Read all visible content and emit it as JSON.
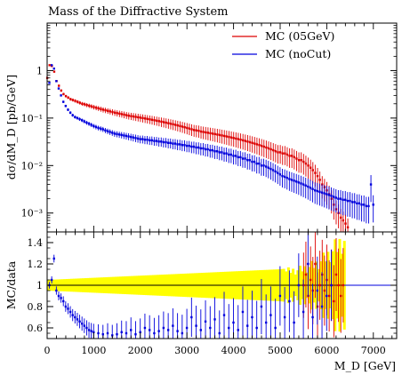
{
  "chart_data": [
    {
      "type": "scatter",
      "title": "Mass of the Diffractive System",
      "ylabel": "dσ/dM_D [pb/GeV]",
      "xlabel": "",
      "xlim": [
        0,
        7500
      ],
      "ylim": [
        0.0004,
        10
      ],
      "yscale": "log",
      "grid": false,
      "legend_position": "top-right",
      "ytick_labels": [
        "10⁻³",
        "10⁻²",
        "10⁻¹",
        "1"
      ],
      "x": [
        25,
        75,
        125,
        175,
        225,
        275,
        325,
        375,
        425,
        475,
        525,
        575,
        625,
        675,
        725,
        775,
        825,
        875,
        925,
        975,
        1025,
        1075,
        1125,
        1175,
        1225,
        1275,
        1325,
        1375,
        1425,
        1475,
        1525,
        1575,
        1625,
        1675,
        1725,
        1775,
        1825,
        1875,
        1925,
        1975,
        2025,
        2075,
        2125,
        2175,
        2225,
        2275,
        2325,
        2375,
        2425,
        2475,
        2525,
        2575,
        2625,
        2675,
        2725,
        2775,
        2825,
        2875,
        2925,
        2975,
        3025,
        3075,
        3125,
        3175,
        3225,
        3275,
        3325,
        3375,
        3425,
        3475,
        3525,
        3575,
        3625,
        3675,
        3725,
        3775,
        3825,
        3875,
        3925,
        3975,
        4025,
        4075,
        4125,
        4175,
        4225,
        4275,
        4325,
        4375,
        4425,
        4475,
        4525,
        4575,
        4625,
        4675,
        4725,
        4775,
        4825,
        4875,
        4925,
        4975,
        5025,
        5075,
        5125,
        5175,
        5225,
        5275,
        5325,
        5375,
        5425,
        5475,
        5525,
        5575,
        5625,
        5675,
        5725,
        5775,
        5825,
        5875,
        5925,
        5975,
        6025,
        6075,
        6125,
        6175,
        6225,
        6275,
        6325,
        6375,
        6425,
        6475,
        6525,
        6575,
        6625,
        6675,
        6725,
        6775,
        6825,
        6875,
        6925,
        6975
      ],
      "series": [
        {
          "name": "MC (05GeV)",
          "color": "#dd0000",
          "values": [
            0.7,
            1.3,
            1.25,
            0.95,
            0.6,
            0.48,
            0.38,
            0.32,
            0.29,
            0.27,
            0.25,
            0.24,
            0.23,
            0.22,
            0.21,
            0.2,
            0.195,
            0.188,
            0.182,
            0.176,
            0.17,
            0.165,
            0.16,
            0.155,
            0.15,
            0.146,
            0.142,
            0.138,
            0.134,
            0.13,
            0.127,
            0.124,
            0.121,
            0.118,
            0.115,
            0.112,
            0.11,
            0.108,
            0.106,
            0.104,
            0.102,
            0.1,
            0.098,
            0.096,
            0.094,
            0.092,
            0.09,
            0.088,
            0.086,
            0.084,
            0.082,
            0.08,
            0.078,
            0.076,
            0.074,
            0.072,
            0.07,
            0.068,
            0.066,
            0.064,
            0.062,
            0.06,
            0.058,
            0.056,
            0.055,
            0.054,
            0.052,
            0.051,
            0.05,
            0.049,
            0.048,
            0.047,
            0.046,
            0.045,
            0.044,
            0.043,
            0.042,
            0.041,
            0.04,
            0.039,
            0.038,
            0.037,
            0.036,
            0.035,
            0.034,
            0.033,
            0.032,
            0.031,
            0.03,
            0.029,
            0.028,
            0.027,
            0.026,
            0.025,
            0.024,
            0.023,
            0.022,
            0.021,
            0.02,
            0.019,
            0.019,
            0.018,
            0.018,
            0.017,
            0.016,
            0.016,
            0.015,
            0.014,
            0.013,
            0.013,
            0.012,
            0.011,
            0.01,
            0.009,
            0.008,
            0.007,
            0.006,
            0.005,
            0.004,
            0.0035,
            0.003,
            0.0025,
            0.002,
            0.0015,
            0.0012,
            0.001,
            0.0008,
            0.0007,
            0.0006,
            0.0005,
            null,
            null,
            null,
            null,
            null,
            null,
            null,
            null,
            null,
            null
          ]
        },
        {
          "name": "MC (noCut)",
          "color": "#0000dd",
          "values": [
            0.55,
            1.3,
            1.1,
            0.6,
            0.42,
            0.3,
            0.22,
            0.18,
            0.15,
            0.13,
            0.115,
            0.105,
            0.1,
            0.095,
            0.09,
            0.085,
            0.08,
            0.076,
            0.072,
            0.068,
            0.065,
            0.062,
            0.06,
            0.058,
            0.055,
            0.053,
            0.051,
            0.049,
            0.047,
            0.046,
            0.045,
            0.044,
            0.043,
            0.042,
            0.041,
            0.04,
            0.039,
            0.038,
            0.037,
            0.036,
            0.036,
            0.035,
            0.035,
            0.034,
            0.034,
            0.033,
            0.033,
            0.032,
            0.032,
            0.031,
            0.031,
            0.03,
            0.03,
            0.029,
            0.029,
            0.028,
            0.028,
            0.027,
            0.027,
            0.026,
            0.026,
            0.025,
            0.025,
            0.024,
            0.024,
            0.023,
            0.023,
            0.022,
            0.022,
            0.021,
            0.021,
            0.02,
            0.02,
            0.019,
            0.019,
            0.018,
            0.018,
            0.017,
            0.017,
            0.016,
            0.016,
            0.015,
            0.015,
            0.014,
            0.014,
            0.013,
            0.013,
            0.012,
            0.012,
            0.011,
            0.011,
            0.01,
            0.01,
            0.0095,
            0.009,
            0.0085,
            0.008,
            0.0075,
            0.007,
            0.0065,
            0.006,
            0.0058,
            0.0055,
            0.0052,
            0.005,
            0.0048,
            0.0046,
            0.0044,
            0.0042,
            0.004,
            0.0038,
            0.0036,
            0.0034,
            0.0032,
            0.003,
            0.0029,
            0.0028,
            0.0027,
            0.0026,
            0.0025,
            0.0024,
            0.0023,
            0.0022,
            0.0021,
            0.002,
            0.002,
            0.0019,
            0.0019,
            0.0018,
            0.0018,
            0.0017,
            0.0017,
            0.0016,
            0.0016,
            0.0015,
            0.0015,
            0.0014,
            0.0014,
            0.004,
            0.0015
          ]
        }
      ]
    },
    {
      "type": "scatter",
      "title": "",
      "ylabel": "MC/data",
      "xlabel": "M_D [GeV]",
      "xlim": [
        0,
        7500
      ],
      "ylim": [
        0.5,
        1.5
      ],
      "yscale": "linear",
      "xtick_labels": [
        "0",
        "1000",
        "2000",
        "3000",
        "4000",
        "5000",
        "6000",
        "7000"
      ],
      "ytick_labels": [
        "0.6",
        "0.8",
        "1",
        "1.2",
        "1.4"
      ],
      "reference_line": 1,
      "band_color": "#ffff00",
      "band_halfwidth": [
        0.05,
        0.06,
        0.07,
        0.08,
        0.09,
        0.1,
        0.11,
        0.12,
        0.13,
        0.14,
        0.15,
        0.16,
        0.17,
        0.2,
        0.24,
        0.32,
        0.42,
        0.5,
        0.5
      ],
      "band_halfwidth_x": [
        0,
        500,
        1000,
        1500,
        2000,
        2500,
        3000,
        3500,
        4000,
        4500,
        5000,
        5200,
        5400,
        5600,
        5800,
        6000,
        6200,
        6350,
        6400
      ],
      "series": [
        {
          "name": "MC (05GeV)",
          "color": "#dd0000",
          "x": [
            5525,
            5575,
            5625,
            5675,
            5725,
            5775,
            5825,
            5875,
            5925,
            5975,
            6025,
            6075,
            6125,
            6175,
            6225,
            6275,
            6325,
            6375
          ],
          "values": [
            1.0,
            1.1,
            0.9,
            1.05,
            0.95,
            1.2,
            0.8,
            1.0,
            1.1,
            0.95,
            1.05,
            0.9,
            1.0,
            0.85,
            1.1,
            1.0,
            0.9,
            1.0
          ]
        },
        {
          "name": "MC (noCut)",
          "color": "#0000dd",
          "x": [
            25,
            75,
            125,
            175,
            225,
            275,
            325,
            375,
            425,
            475,
            525,
            575,
            625,
            675,
            725,
            775,
            825,
            875,
            925,
            975,
            1075,
            1175,
            1275,
            1375,
            1475,
            1575,
            1675,
            1775,
            1875,
            1975,
            2075,
            2175,
            2275,
            2375,
            2475,
            2575,
            2675,
            2775,
            2875,
            2975,
            3075,
            3175,
            3275,
            3375,
            3475,
            3575,
            3675,
            3775,
            3875,
            3975,
            4075,
            4175,
            4275,
            4375,
            4475,
            4575,
            4675,
            4775,
            4875,
            4975,
            5075,
            5175,
            5275,
            5375,
            5475,
            5575,
            5675,
            5775,
            5875,
            5975,
            6075
          ],
          "values": [
            1.0,
            1.05,
            1.25,
            0.95,
            0.9,
            0.88,
            0.85,
            0.8,
            0.78,
            0.75,
            0.72,
            0.7,
            0.68,
            0.66,
            0.64,
            0.62,
            0.6,
            0.58,
            0.57,
            0.56,
            0.55,
            0.54,
            0.55,
            0.53,
            0.54,
            0.56,
            0.55,
            0.58,
            0.54,
            0.56,
            0.6,
            0.58,
            0.55,
            0.57,
            0.6,
            0.58,
            0.62,
            0.57,
            0.55,
            0.6,
            0.7,
            0.62,
            0.58,
            0.66,
            0.6,
            0.68,
            0.55,
            0.72,
            0.6,
            0.65,
            0.58,
            0.75,
            0.62,
            0.7,
            0.6,
            0.8,
            0.65,
            0.72,
            0.6,
            0.9,
            0.7,
            0.85,
            0.65,
            1.0,
            0.75,
            1.2,
            0.7,
            0.95,
            0.8,
            0.9,
            1.0
          ]
        }
      ]
    }
  ]
}
